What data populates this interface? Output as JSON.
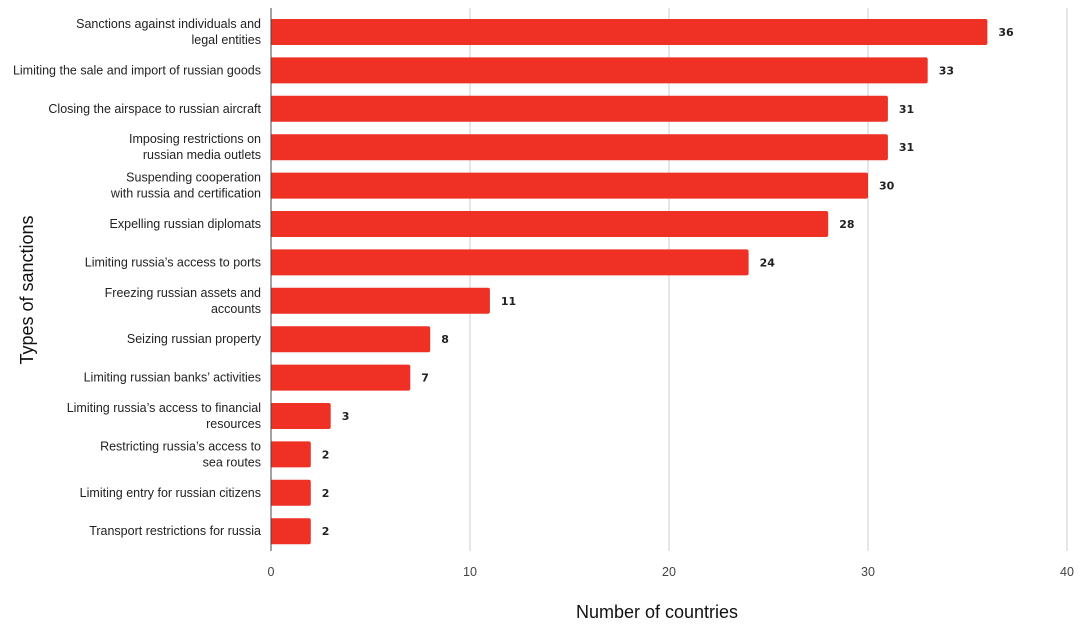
{
  "chart_data": {
    "type": "bar",
    "orientation": "horizontal",
    "title": "",
    "xlabel": "Number of countries",
    "ylabel": "Types of sanctions",
    "xlim": [
      0,
      40
    ],
    "x_ticks": [
      0,
      10,
      20,
      30,
      40
    ],
    "grid": "vertical",
    "bar_color": "#ee3124",
    "categories": [
      [
        "Sanctions against individuals and",
        "legal entities"
      ],
      [
        "Limiting the sale and import of russian goods"
      ],
      [
        "Closing the airspace to russian aircraft"
      ],
      [
        "Imposing restrictions on",
        "russian media outlets"
      ],
      [
        "Suspending cooperation",
        "with russia and certification"
      ],
      [
        "Expelling russian diplomats"
      ],
      [
        "Limiting russia’s access to ports"
      ],
      [
        "Freezing russian assets and",
        "accounts"
      ],
      [
        "Seizing russian property"
      ],
      [
        "Limiting russian banks’ activities"
      ],
      [
        "Limiting russia’s access to financial",
        "resources"
      ],
      [
        "Restricting russia’s access to",
        "sea routes"
      ],
      [
        "Limiting entry for russian citizens"
      ],
      [
        "Transport restrictions for russia"
      ]
    ],
    "values": [
      36,
      33,
      31,
      31,
      30,
      28,
      24,
      11,
      8,
      7,
      3,
      2,
      2,
      2
    ]
  }
}
